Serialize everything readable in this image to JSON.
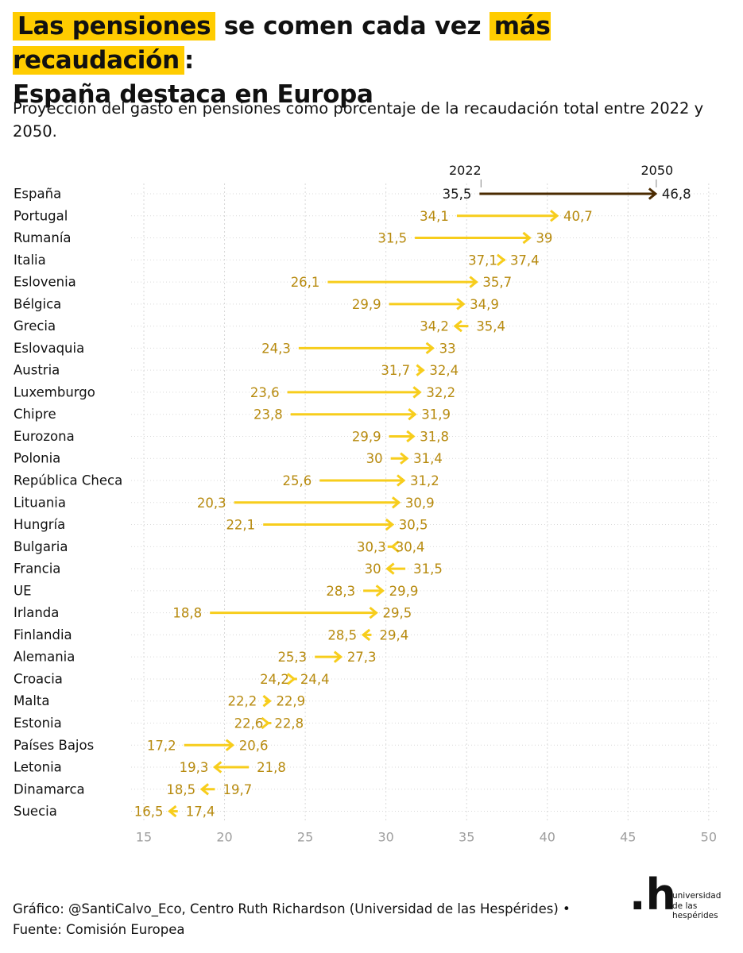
{
  "title": {
    "part1": "Las pensiones",
    "part2": " se comen cada vez ",
    "part3": "más recaudación",
    "part4": ":",
    "line2": "España destaca en Europa"
  },
  "subtitle": "Proyección del gasto en pensiones como porcentaje de la recaudación total entre 2022 y 2050.",
  "footer": {
    "line1": "Gráfico: @SantiCalvo_Eco, Centro Ruth Richardson (Universidad de las Hespérides) •",
    "line2": "Fuente: Comisión Europea"
  },
  "logo": {
    "mark": ".h",
    "name_line1": "universidad",
    "name_line2": "de las",
    "name_line3": "hespérides"
  },
  "colors": {
    "accent": "#f7cd1c",
    "label": "#b78a0e",
    "highlight": "#4a2a00",
    "grid": "#d9d9d9",
    "tick": "#9e9e9e",
    "title_highlight": "#ffcc00"
  },
  "chart_data": {
    "type": "arrow-dot",
    "x_start_label": "2022",
    "x_end_label": "2050",
    "xlim": [
      15,
      50
    ],
    "xticks": [
      15,
      20,
      25,
      30,
      35,
      40,
      45,
      50
    ],
    "grid": true,
    "highlight_category": "España",
    "categories": [
      "España",
      "Portugal",
      "Rumanía",
      "Italia",
      "Eslovenia",
      "Bélgica",
      "Grecia",
      "Eslovaquia",
      "Austria",
      "Luxemburgo",
      "Chipre",
      "Eurozona",
      "Polonia",
      "República Checa",
      "Lituania",
      "Hungría",
      "Bulgaria",
      "Francia",
      "UE",
      "Irlanda",
      "Finlandia",
      "Alemania",
      "Croacia",
      "Malta",
      "Estonia",
      "Países Bajos",
      "Letonia",
      "Dinamarca",
      "Suecia"
    ],
    "series": [
      {
        "name": "2022",
        "values": [
          35.5,
          34.1,
          31.5,
          37.1,
          26.1,
          29.9,
          35.4,
          24.3,
          31.7,
          23.6,
          23.8,
          29.9,
          30,
          25.6,
          20.3,
          22.1,
          30.4,
          31.5,
          28.3,
          18.8,
          29.4,
          25.3,
          24.2,
          22.2,
          22.6,
          17.2,
          21.8,
          19.7,
          17.4
        ]
      },
      {
        "name": "2050",
        "values": [
          46.8,
          40.7,
          39,
          37.4,
          35.7,
          34.9,
          34.2,
          33,
          32.4,
          32.2,
          31.9,
          31.8,
          31.4,
          31.2,
          30.9,
          30.5,
          30.3,
          30,
          29.9,
          29.5,
          28.5,
          27.3,
          24.4,
          22.9,
          22.8,
          20.6,
          19.3,
          18.5,
          16.5
        ]
      }
    ],
    "start_labels": [
      "35,5",
      "34,1",
      "31,5",
      "37,1",
      "26,1",
      "29,9",
      "35,4",
      "24,3",
      "31,7",
      "23,6",
      "23,8",
      "29,9",
      "30",
      "25,6",
      "20,3",
      "22,1",
      "30,4",
      "31,5",
      "28,3",
      "18,8",
      "29,4",
      "25,3",
      "24,2",
      "22,2",
      "22,6",
      "17,2",
      "21,8",
      "19,7",
      "17,4"
    ],
    "end_labels": [
      "46,8",
      "40,7",
      "39",
      "37,4",
      "35,7",
      "34,9",
      "34,2",
      "33",
      "32,4",
      "32,2",
      "31,9",
      "31,8",
      "31,4",
      "31,2",
      "30,9",
      "30,5",
      "30,3",
      "30",
      "29,9",
      "29,5",
      "28,5",
      "27,3",
      "24,4",
      "22,9",
      "22,8",
      "20,6",
      "19,3",
      "18,5",
      "16,5"
    ],
    "xtick_labels": [
      "15",
      "20",
      "25",
      "30",
      "35",
      "40",
      "45",
      "50"
    ]
  }
}
